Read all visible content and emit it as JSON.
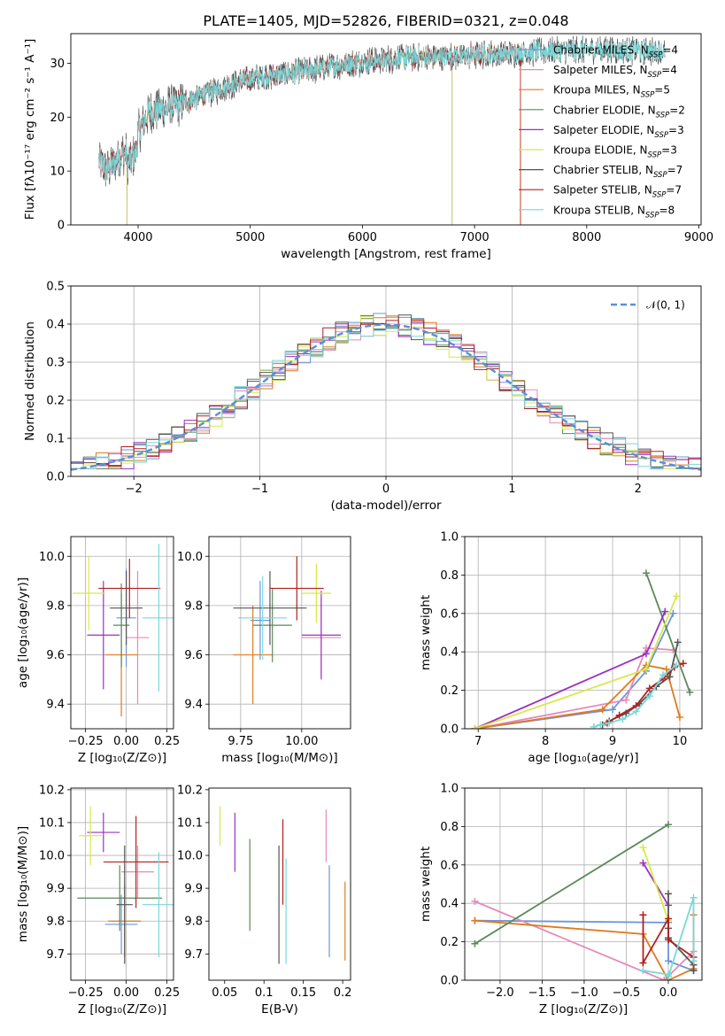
{
  "figure_title": "PLATE=1405, MJD=52826, FIBERID=0321, z=0.048",
  "colors": {
    "chab_miles": "#6d95d9",
    "salp_miles": "#e68ab8",
    "krou_miles": "#e07a20",
    "chab_elodie": "#5a8a5a",
    "salp_elodie": "#9b30c0",
    "krou_elodie": "#d8e84a",
    "chab_stelib": "#555555",
    "salp_stelib": "#b22020",
    "krou_stelib": "#78d8d8",
    "normal": "#5b8fd6"
  },
  "chart_data": [
    {
      "id": "spectrum",
      "type": "line",
      "xlabel": "wavelength [Angstrom, rest frame]",
      "ylabel": "Flux [fλ10⁻¹⁷ erg cm⁻² s⁻¹ A⁻¹]",
      "xlim": [
        3400,
        9020
      ],
      "ylim": [
        0,
        35.5
      ],
      "xticks": [
        4000,
        5000,
        6000,
        7000,
        8000,
        9000
      ],
      "yticks": [
        0,
        10,
        20,
        30
      ],
      "legend_position": "upper-right",
      "legend": [
        {
          "label": "Chabrier MILES, N",
          "sub": "SSP",
          "suffix": "=4",
          "color_key": "chab_miles"
        },
        {
          "label": "Salpeter MILES, N",
          "sub": "SSP",
          "suffix": "=4",
          "color_key": "salp_miles"
        },
        {
          "label": "Kroupa MILES, N",
          "sub": "SSP",
          "suffix": "=5",
          "color_key": "krou_miles"
        },
        {
          "label": "Chabrier ELODIE, N",
          "sub": "SSP",
          "suffix": "=2",
          "color_key": "chab_elodie"
        },
        {
          "label": "Salpeter ELODIE, N",
          "sub": "SSP",
          "suffix": "=3",
          "color_key": "salp_elodie"
        },
        {
          "label": "Kroupa ELODIE, N",
          "sub": "SSP",
          "suffix": "=3",
          "color_key": "krou_elodie"
        },
        {
          "label": "Chabrier STELIB, N",
          "sub": "SSP",
          "suffix": "=7",
          "color_key": "chab_stelib"
        },
        {
          "label": "Salpeter STELIB, N",
          "sub": "SSP",
          "suffix": "=7",
          "color_key": "salp_stelib"
        },
        {
          "label": "Kroupa STELIB, N",
          "sub": "SSP",
          "suffix": "=8",
          "color_key": "krou_stelib"
        }
      ],
      "continuum": [
        [
          3650,
          12
        ],
        [
          3720,
          10
        ],
        [
          3800,
          12
        ],
        [
          3900,
          14
        ],
        [
          4000,
          17
        ],
        [
          4100,
          21
        ],
        [
          4300,
          22
        ],
        [
          4500,
          23.5
        ],
        [
          4700,
          25
        ],
        [
          4900,
          26.5
        ],
        [
          5100,
          27.5
        ],
        [
          5300,
          28
        ],
        [
          5600,
          29
        ],
        [
          5900,
          30
        ],
        [
          6100,
          30.5
        ],
        [
          6400,
          31
        ],
        [
          6700,
          31.2
        ],
        [
          7000,
          31.5
        ],
        [
          7300,
          31.8
        ],
        [
          7600,
          32.2
        ],
        [
          7900,
          32.5
        ],
        [
          8200,
          32.5
        ],
        [
          8500,
          32.3
        ],
        [
          8700,
          32.3
        ]
      ],
      "model_ranges": [
        {
          "color_key": "chab_miles",
          "x": [
            3650,
            7410
          ]
        },
        {
          "color_key": "salp_miles",
          "x": [
            3650,
            7410
          ]
        },
        {
          "color_key": "krou_miles",
          "x": [
            3650,
            7410
          ]
        },
        {
          "color_key": "chab_elodie",
          "x": [
            3900,
            6800
          ]
        },
        {
          "color_key": "salp_elodie",
          "x": [
            3900,
            6800
          ]
        },
        {
          "color_key": "krou_elodie",
          "x": [
            3900,
            6800
          ]
        },
        {
          "color_key": "chab_stelib",
          "x": [
            3650,
            8700
          ]
        },
        {
          "color_key": "salp_stelib",
          "x": [
            3650,
            7410
          ]
        },
        {
          "color_key": "krou_stelib",
          "x": [
            3650,
            8700
          ]
        }
      ]
    },
    {
      "id": "residuals",
      "type": "histogram",
      "xlabel": "(data-model)/error",
      "ylabel": "Normed distribution",
      "xlim": [
        -2.5,
        2.5
      ],
      "ylim": [
        0,
        0.5
      ],
      "xticks": [
        -2,
        -1,
        0,
        1,
        2
      ],
      "yticks": [
        0.0,
        0.1,
        0.2,
        0.3,
        0.4,
        0.5
      ],
      "grid": true,
      "bin_width": 0.1,
      "legend": [
        {
          "label": "𝒩(0, 1)",
          "color_key": "normal",
          "style": "dashed"
        }
      ],
      "legend_position": "upper-right"
    },
    {
      "id": "age_vs_z",
      "type": "errorbar",
      "xlabel": "Z [log₁₀(Z/Z⊙)]",
      "ylabel": "age  [log₁₀(age/yr)]",
      "xlim": [
        -0.34,
        0.29
      ],
      "ylim": [
        9.3,
        10.08
      ],
      "xticks": [
        -0.25,
        0.0,
        0.25
      ],
      "yticks": [
        9.4,
        9.6,
        9.8,
        10.0
      ],
      "grid": true,
      "points": [
        {
          "color_key": "chab_miles",
          "x": 0.0,
          "xerr": 0.06,
          "y": 9.75,
          "yerr": 0.2
        },
        {
          "color_key": "salp_miles",
          "x": 0.07,
          "xerr": 0.07,
          "y": 9.67,
          "yerr": 0.27
        },
        {
          "color_key": "krou_miles",
          "x": -0.03,
          "xerr": 0.1,
          "y": 9.6,
          "yerr": 0.25
        },
        {
          "color_key": "chab_elodie",
          "x": -0.03,
          "xerr": 0.05,
          "y": 9.72,
          "yerr": 0.17
        },
        {
          "color_key": "salp_elodie",
          "x": -0.14,
          "xerr": 0.1,
          "y": 9.68,
          "yerr": 0.22
        },
        {
          "color_key": "krou_elodie",
          "x": -0.23,
          "xerr": 0.1,
          "y": 9.85,
          "yerr": 0.15
        },
        {
          "color_key": "chab_stelib",
          "x": 0.0,
          "xerr": 0.1,
          "y": 9.79,
          "yerr": 0.15
        },
        {
          "color_key": "salp_stelib",
          "x": 0.02,
          "xerr": 0.19,
          "y": 9.87,
          "yerr": 0.12
        },
        {
          "color_key": "krou_stelib",
          "x": 0.2,
          "xerr": 0.1,
          "y": 9.75,
          "yerr": 0.3
        }
      ]
    },
    {
      "id": "age_vs_mass",
      "type": "errorbar",
      "xlabel": "mass [log₁₀(M/M⊙)]",
      "ylabel": "",
      "xlim": [
        9.62,
        10.2
      ],
      "ylim": [
        9.3,
        10.08
      ],
      "xticks": [
        9.75,
        10.0
      ],
      "yticks": [
        9.4,
        9.6,
        9.8,
        10.0
      ],
      "grid": true,
      "points": [
        {
          "color_key": "chab_miles",
          "x": 9.83,
          "xerr": 0.04,
          "y": 9.74,
          "yerr": 0.16
        },
        {
          "color_key": "salp_miles",
          "x": 10.08,
          "xerr": 0.08,
          "y": 9.67,
          "yerr": 0.16
        },
        {
          "color_key": "krou_miles",
          "x": 9.8,
          "xerr": 0.08,
          "y": 9.6,
          "yerr": 0.2
        },
        {
          "color_key": "chab_elodie",
          "x": 9.88,
          "xerr": 0.08,
          "y": 9.72,
          "yerr": 0.15
        },
        {
          "color_key": "salp_elodie",
          "x": 10.08,
          "xerr": 0.08,
          "y": 9.68,
          "yerr": 0.18
        },
        {
          "color_key": "krou_elodie",
          "x": 10.06,
          "xerr": 0.06,
          "y": 9.85,
          "yerr": 0.12
        },
        {
          "color_key": "chab_stelib",
          "x": 9.87,
          "xerr": 0.15,
          "y": 9.79,
          "yerr": 0.15
        },
        {
          "color_key": "salp_stelib",
          "x": 9.98,
          "xerr": 0.11,
          "y": 9.87,
          "yerr": 0.13
        },
        {
          "color_key": "krou_stelib",
          "x": 9.84,
          "xerr": 0.1,
          "y": 9.75,
          "yerr": 0.17
        }
      ]
    },
    {
      "id": "weight_vs_age",
      "type": "line",
      "xlabel": "age  [log₁₀(age/yr)]",
      "ylabel": "mass weight",
      "xlim": [
        6.8,
        10.33
      ],
      "ylim": [
        0,
        1.0
      ],
      "xticks": [
        7,
        8,
        9,
        10
      ],
      "yticks": [
        0.0,
        0.2,
        0.4,
        0.6,
        0.8,
        1.0
      ],
      "grid": true,
      "series": [
        {
          "color_key": "chab_miles",
          "x": [
            6.95,
            9.0,
            9.5,
            9.9
          ],
          "y": [
            0.0,
            0.1,
            0.3,
            0.6
          ]
        },
        {
          "color_key": "salp_miles",
          "x": [
            6.95,
            9.2,
            9.5,
            9.9
          ],
          "y": [
            0.0,
            0.15,
            0.42,
            0.41
          ]
        },
        {
          "color_key": "krou_miles",
          "x": [
            6.95,
            8.85,
            9.5,
            9.8,
            10.0
          ],
          "y": [
            0.0,
            0.1,
            0.33,
            0.31,
            0.06
          ]
        },
        {
          "color_key": "chab_elodie",
          "x": [
            9.5,
            10.15
          ],
          "y": [
            0.81,
            0.19
          ]
        },
        {
          "color_key": "salp_elodie",
          "x": [
            6.95,
            9.5,
            9.78
          ],
          "y": [
            0.0,
            0.39,
            0.61
          ]
        },
        {
          "color_key": "krou_elodie",
          "x": [
            6.95,
            9.5,
            9.95
          ],
          "y": [
            0.0,
            0.31,
            0.69
          ]
        },
        {
          "color_key": "chab_stelib",
          "x": [
            8.85,
            8.95,
            9.2,
            9.4,
            9.65,
            9.85,
            9.97
          ],
          "y": [
            0.02,
            0.04,
            0.08,
            0.13,
            0.22,
            0.27,
            0.45
          ]
        },
        {
          "color_key": "salp_stelib",
          "x": [
            8.92,
            9.1,
            9.35,
            9.55,
            9.75,
            9.92,
            10.05
          ],
          "y": [
            0.03,
            0.07,
            0.12,
            0.21,
            0.26,
            0.32,
            0.34
          ]
        },
        {
          "color_key": "krou_stelib",
          "x": [
            8.72,
            8.82,
            8.95,
            9.15,
            9.35,
            9.55,
            9.75,
            9.95
          ],
          "y": [
            0.01,
            0.02,
            0.03,
            0.05,
            0.09,
            0.17,
            0.28,
            0.33
          ]
        }
      ]
    },
    {
      "id": "mass_vs_z",
      "type": "errorbar",
      "xlabel": "Z [log₁₀(Z/Z⊙)]",
      "ylabel": "mass [log₁₀(M/M⊙)]",
      "xlim": [
        -0.34,
        0.29
      ],
      "ylim": [
        9.62,
        10.205
      ],
      "xticks": [
        -0.25,
        0.0,
        0.25
      ],
      "yticks": [
        9.7,
        9.8,
        9.9,
        10.0,
        10.1,
        10.2
      ],
      "grid": true,
      "points": [
        {
          "color_key": "chab_miles",
          "x": -0.03,
          "xerr": 0.1,
          "y": 9.79,
          "yerr": 0.09
        },
        {
          "color_key": "salp_miles",
          "x": 0.07,
          "xerr": 0.1,
          "y": 9.95,
          "yerr": 0.08
        },
        {
          "color_key": "krou_miles",
          "x": -0.01,
          "xerr": 0.1,
          "y": 9.8,
          "yerr": 0.11
        },
        {
          "color_key": "chab_elodie",
          "x": -0.04,
          "xerr": 0.26,
          "y": 9.87,
          "yerr": 0.1
        },
        {
          "color_key": "salp_elodie",
          "x": -0.14,
          "xerr": 0.1,
          "y": 10.07,
          "yerr": 0.06
        },
        {
          "color_key": "krou_elodie",
          "x": -0.22,
          "xerr": 0.07,
          "y": 10.06,
          "yerr": 0.09
        },
        {
          "color_key": "chab_stelib",
          "x": -0.01,
          "xerr": 0.05,
          "y": 9.85,
          "yerr": 0.18
        },
        {
          "color_key": "salp_stelib",
          "x": 0.06,
          "xerr": 0.2,
          "y": 9.98,
          "yerr": 0.14
        },
        {
          "color_key": "krou_stelib",
          "x": 0.2,
          "xerr": 0.1,
          "y": 9.85,
          "yerr": 0.16
        }
      ]
    },
    {
      "id": "mass_vs_ebv",
      "type": "errorbar",
      "xlabel": "E(B-V)",
      "ylabel": "",
      "xlim": [
        0.03,
        0.21
      ],
      "ylim": [
        9.62,
        10.205
      ],
      "xticks": [
        0.05,
        0.1,
        0.15,
        0.2
      ],
      "yticks": [
        9.7,
        9.8,
        9.9,
        10.0,
        10.1,
        10.2
      ],
      "grid": false,
      "points": [
        {
          "color_key": "chab_miles",
          "x": 0.183,
          "xerr": 0.0,
          "y": 9.83,
          "yerr": 0.14
        },
        {
          "color_key": "salp_miles",
          "x": 0.179,
          "xerr": 0.0,
          "y": 10.06,
          "yerr": 0.08
        },
        {
          "color_key": "krou_miles",
          "x": 0.203,
          "xerr": 0.0,
          "y": 9.8,
          "yerr": 0.12
        },
        {
          "color_key": "chab_elodie",
          "x": 0.082,
          "xerr": 0.0,
          "y": 9.91,
          "yerr": 0.14
        },
        {
          "color_key": "salp_elodie",
          "x": 0.063,
          "xerr": 0.0,
          "y": 10.04,
          "yerr": 0.09
        },
        {
          "color_key": "krou_elodie",
          "x": 0.044,
          "xerr": 0.0,
          "y": 10.09,
          "yerr": 0.06
        },
        {
          "color_key": "chab_stelib",
          "x": 0.119,
          "xerr": 0.0,
          "y": 9.85,
          "yerr": 0.18
        },
        {
          "color_key": "salp_stelib",
          "x": 0.124,
          "xerr": 0.0,
          "y": 9.98,
          "yerr": 0.13
        },
        {
          "color_key": "krou_stelib",
          "x": 0.128,
          "xerr": 0.0,
          "y": 9.83,
          "yerr": 0.16
        }
      ]
    },
    {
      "id": "weight_vs_z",
      "type": "line",
      "xlabel": "Z [log₁₀(Z/Z⊙)]",
      "ylabel": "mass weight",
      "xlim": [
        -2.42,
        0.4
      ],
      "ylim": [
        0,
        1.0
      ],
      "xticks": [
        -2.0,
        -1.5,
        -1.0,
        -0.5,
        0.0
      ],
      "yticks": [
        0.0,
        0.2,
        0.4,
        0.6,
        0.8,
        1.0
      ],
      "grid": true,
      "series": [
        {
          "color_key": "chab_miles",
          "x": [
            -2.3,
            0.0,
            0.0,
            0.3
          ],
          "y": [
            0.31,
            0.3,
            0.1,
            0.05
          ]
        },
        {
          "color_key": "salp_miles",
          "x": [
            -2.3,
            -0.05,
            0.3,
            0.3
          ],
          "y": [
            0.41,
            0.0,
            0.15,
            0.08
          ]
        },
        {
          "color_key": "krou_miles",
          "x": [
            -2.3,
            -0.3,
            0.0,
            0.3,
            0.3
          ],
          "y": [
            0.31,
            0.24,
            0.0,
            0.06,
            0.34
          ]
        },
        {
          "color_key": "chab_elodie",
          "x": [
            -2.3,
            0.0
          ],
          "y": [
            0.19,
            0.81
          ]
        },
        {
          "color_key": "salp_elodie",
          "x": [
            -0.3,
            0.0
          ],
          "y": [
            0.61,
            0.39
          ]
        },
        {
          "color_key": "krou_elodie",
          "x": [
            -0.3,
            0.0
          ],
          "y": [
            0.69,
            0.31
          ]
        },
        {
          "color_key": "chab_stelib",
          "x": [
            0.0,
            0.0,
            0.0,
            0.3,
            0.3
          ],
          "y": [
            0.45,
            0.27,
            0.22,
            0.08,
            0.05
          ]
        },
        {
          "color_key": "salp_stelib",
          "x": [
            -0.3,
            -0.3,
            0.0,
            0.0,
            0.3
          ],
          "y": [
            0.34,
            0.09,
            0.32,
            0.21,
            0.12
          ]
        },
        {
          "color_key": "krou_stelib",
          "x": [
            -0.3,
            0.0,
            0.0,
            0.3,
            0.3
          ],
          "y": [
            0.05,
            0.03,
            0.02,
            0.43,
            0.1
          ]
        }
      ]
    }
  ]
}
